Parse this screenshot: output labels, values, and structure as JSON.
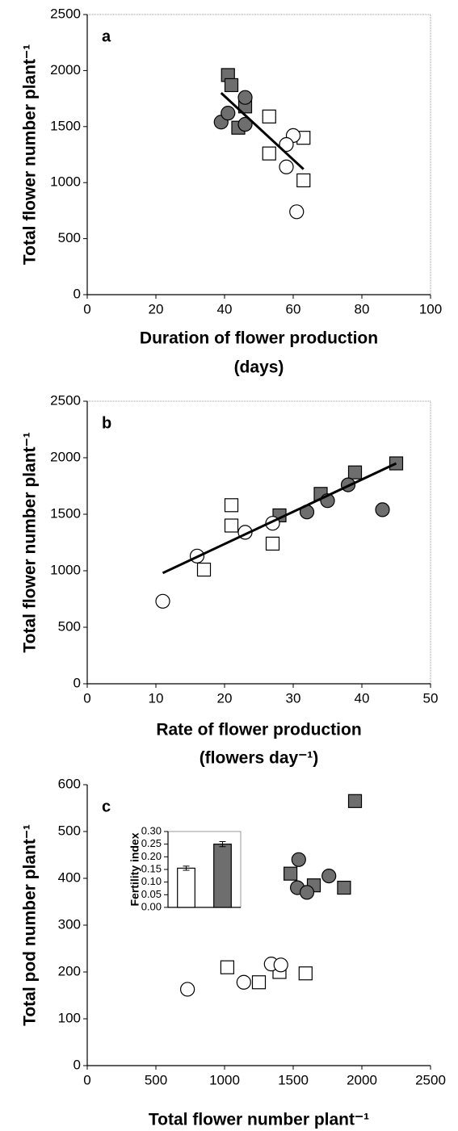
{
  "chart_data": [
    {
      "type": "scatter",
      "title": "a",
      "ylabel": "Total flower number plant⁻¹",
      "xlabel": [
        "Duration of flower production",
        "(days)"
      ],
      "xlim": [
        0,
        100
      ],
      "xticks": [
        0,
        20,
        40,
        60,
        80,
        100
      ],
      "ylim": [
        0,
        2500
      ],
      "yticks": [
        0,
        500,
        1000,
        1500,
        2000,
        2500
      ],
      "frame": true,
      "series": [
        {
          "marker": "square",
          "color": "#6e6e6e",
          "x": [
            41,
            42,
            46,
            44
          ],
          "values": [
            1960,
            1870,
            1680,
            1490
          ]
        },
        {
          "marker": "circle",
          "color": "#6e6e6e",
          "x": [
            39,
            41,
            46,
            46
          ],
          "values": [
            1540,
            1620,
            1760,
            1520
          ]
        },
        {
          "marker": "square",
          "color": "#ffffff",
          "x": [
            53,
            53,
            63,
            63
          ],
          "values": [
            1590,
            1260,
            1400,
            1020
          ]
        },
        {
          "marker": "circle",
          "color": "#ffffff",
          "x": [
            60,
            58,
            58,
            61
          ],
          "values": [
            1420,
            1340,
            1140,
            740
          ]
        }
      ],
      "trendline": {
        "x": [
          39,
          63
        ],
        "values": [
          1800,
          1120
        ]
      }
    },
    {
      "type": "scatter",
      "title": "b",
      "ylabel": "Total flower number plant⁻¹",
      "xlabel": [
        "Rate of flower production",
        "(flowers day⁻¹)"
      ],
      "xlim": [
        0,
        50
      ],
      "xticks": [
        0,
        10,
        20,
        30,
        40,
        50
      ],
      "ylim": [
        0,
        2500
      ],
      "yticks": [
        0,
        500,
        1000,
        1500,
        2000,
        2500
      ],
      "frame": true,
      "series": [
        {
          "marker": "square",
          "color": "#6e6e6e",
          "x": [
            45,
            39,
            34,
            28
          ],
          "values": [
            1950,
            1870,
            1680,
            1490
          ]
        },
        {
          "marker": "circle",
          "color": "#6e6e6e",
          "x": [
            38,
            35,
            32,
            43
          ],
          "values": [
            1760,
            1620,
            1520,
            1540
          ]
        },
        {
          "marker": "square",
          "color": "#ffffff",
          "x": [
            21,
            21,
            27,
            17
          ],
          "values": [
            1580,
            1400,
            1240,
            1010
          ]
        },
        {
          "marker": "circle",
          "color": "#ffffff",
          "x": [
            27,
            23,
            16,
            11
          ],
          "values": [
            1420,
            1340,
            1130,
            730
          ]
        }
      ],
      "trendline": {
        "x": [
          11,
          45
        ],
        "values": [
          980,
          1950
        ]
      }
    },
    {
      "type": "scatter",
      "title": "c",
      "ylabel": "Total pod number plant⁻¹",
      "xlabel": [
        "Total flower number plant⁻¹"
      ],
      "xlim": [
        0,
        2500
      ],
      "xticks": [
        0,
        500,
        1000,
        1500,
        2000,
        2500
      ],
      "ylim": [
        0,
        600
      ],
      "yticks": [
        0,
        100,
        200,
        300,
        400,
        500,
        600
      ],
      "frame": false,
      "series": [
        {
          "marker": "square",
          "color": "#6e6e6e",
          "x": [
            1950,
            1480,
            1650,
            1870
          ],
          "values": [
            565,
            410,
            385,
            380
          ]
        },
        {
          "marker": "circle",
          "color": "#6e6e6e",
          "x": [
            1540,
            1530,
            1600,
            1760
          ],
          "values": [
            440,
            380,
            370,
            405
          ]
        },
        {
          "marker": "square",
          "color": "#ffffff",
          "x": [
            1020,
            1250,
            1400,
            1590
          ],
          "values": [
            210,
            178,
            200,
            197
          ]
        },
        {
          "marker": "circle",
          "color": "#ffffff",
          "x": [
            730,
            1140,
            1340,
            1410
          ],
          "values": [
            163,
            178,
            217,
            215
          ]
        }
      ]
    },
    {
      "type": "bar",
      "ylabel": "Fertility index",
      "categories": [
        null,
        null
      ],
      "values": [
        0.155,
        0.25
      ],
      "errors": [
        0.008,
        0.01
      ],
      "colors": [
        "#ffffff",
        "#6e6e6e"
      ],
      "ylim": [
        0,
        0.3
      ],
      "yticks": [
        {
          "value": 0,
          "label": "0.00"
        },
        {
          "value": 0.05,
          "label": "0.05"
        },
        {
          "value": 0.1,
          "label": "0.10"
        },
        {
          "value": 0.15,
          "label": "0.15"
        },
        {
          "value": 0.2,
          "label": "0.20"
        },
        {
          "value": 0.25,
          "label": "0.25"
        },
        {
          "value": 0.3,
          "label": "0.30"
        }
      ],
      "frame": true
    }
  ]
}
